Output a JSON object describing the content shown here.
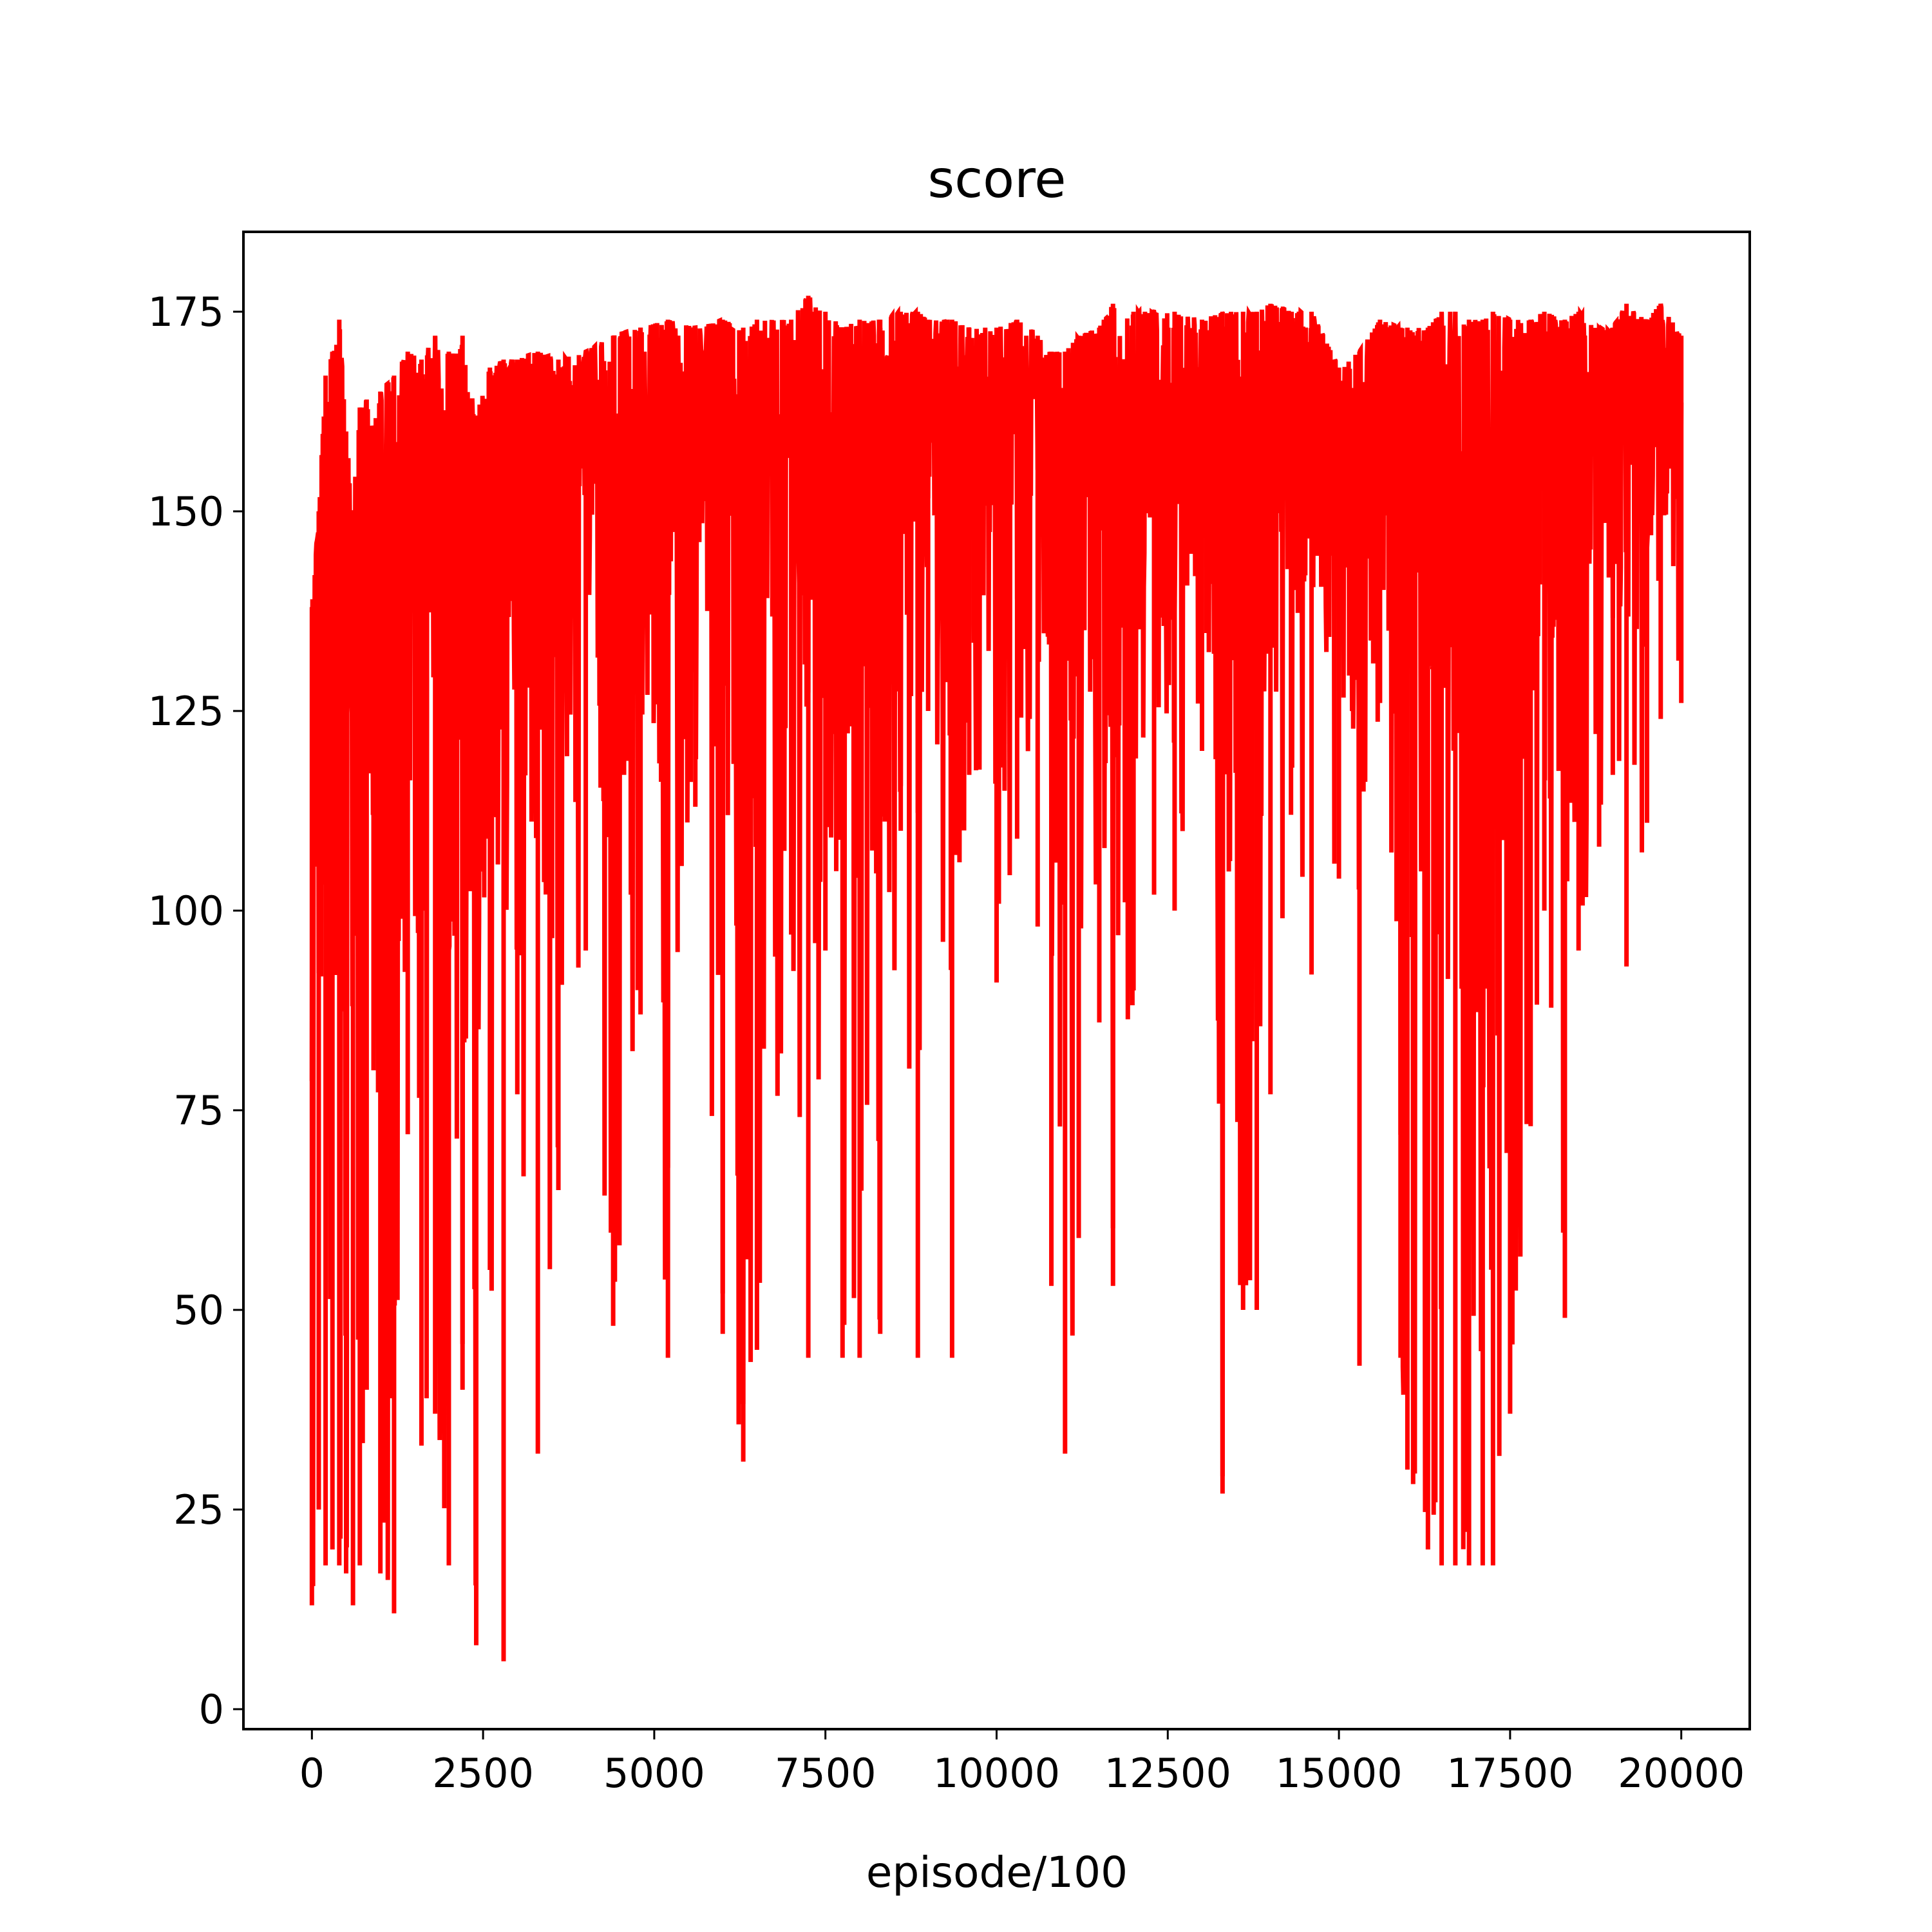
{
  "chart_data": {
    "type": "line",
    "title": "score",
    "xlabel": "episode/100",
    "ylabel": "",
    "xlim": [
      -1000,
      21000
    ],
    "ylim": [
      -2.5,
      185
    ],
    "xticks": [
      0,
      2500,
      5000,
      7500,
      10000,
      12500,
      15000,
      17500,
      20000
    ],
    "xtick_labels": [
      "0",
      "2500",
      "5000",
      "7500",
      "10000",
      "12500",
      "15000",
      "17500",
      "20000"
    ],
    "yticks": [
      0,
      25,
      50,
      75,
      100,
      125,
      150,
      175
    ],
    "ytick_labels": [
      "0",
      "25",
      "50",
      "75",
      "100",
      "125",
      "150",
      "175"
    ],
    "grid": false,
    "legend": "none",
    "series": [
      {
        "color": "#ff0000",
        "x": [
          0,
          100,
          200,
          300,
          400,
          500,
          600,
          700,
          800,
          900,
          1000,
          1200,
          1400,
          1600,
          1800,
          2000,
          2200,
          2400,
          2600,
          2800,
          3000,
          3300,
          3600,
          4000,
          4400,
          4800,
          5200,
          5600,
          6000,
          6300,
          6500,
          7000,
          7250,
          7500,
          7750,
          8000,
          8300,
          8600,
          8850,
          9000,
          9350,
          9600,
          10000,
          10300,
          10600,
          10800,
          11000,
          11200,
          11500,
          11700,
          12000,
          12300,
          12600,
          13000,
          13300,
          13600,
          13800,
          14000,
          14300,
          14600,
          15000,
          15300,
          15600,
          15900,
          16000,
          16300,
          16500,
          16700,
          16900,
          17100,
          17250,
          17500,
          17800,
          18000,
          18300,
          18500,
          18800,
          19000,
          19200,
          19500,
          19700,
          20000
        ],
        "values": [
          138,
          150,
          167,
          170,
          174,
          160,
          150,
          163,
          164,
          160,
          165,
          167,
          170,
          169,
          172,
          170,
          172,
          162,
          168,
          169,
          169,
          170,
          169,
          170,
          172,
          173,
          174,
          173,
          174,
          173,
          174,
          174,
          177,
          175,
          173,
          174,
          174,
          175,
          175,
          174,
          174,
          173,
          173,
          174,
          172,
          170,
          170,
          172,
          173,
          176,
          175,
          175,
          175,
          174,
          175,
          175,
          175,
          176,
          175,
          175,
          168,
          170,
          174,
          173,
          173,
          173,
          175,
          175,
          174,
          174,
          175,
          174,
          174,
          175,
          174,
          175,
          173,
          173,
          176,
          174,
          176,
          172
        ],
        "minima": [
          13,
          25,
          18,
          20,
          18,
          17,
          13,
          18,
          40,
          80,
          17,
          12,
          72,
          33,
          37,
          18,
          40,
          8,
          55,
          6,
          77,
          32,
          65,
          95,
          48,
          87,
          44,
          113,
          47,
          31,
          45,
          97,
          44,
          95,
          44,
          44,
          47,
          110,
          44,
          125,
          44,
          117,
          91,
          109,
          98,
          53,
          32,
          59,
          86,
          53,
          90,
          102,
          100,
          120,
          27,
          50,
          50,
          77,
          112,
          92,
          104,
          43,
          126,
          44,
          30,
          20,
          18,
          18,
          18,
          18,
          18,
          37,
          73,
          100,
          49,
          95,
          108,
          117,
          93,
          111,
          124,
          126
        ]
      }
    ]
  }
}
